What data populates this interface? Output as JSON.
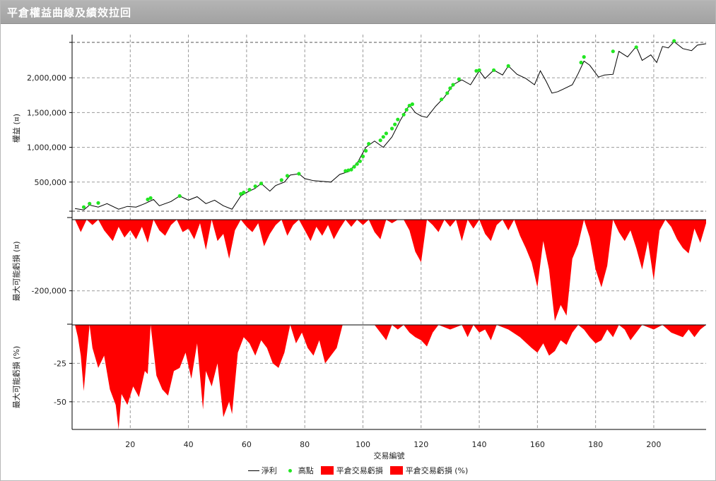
{
  "window": {
    "title": "平倉權益曲線及績效拉回"
  },
  "colors": {
    "equity_line": "#000000",
    "highs": "#22e622",
    "drawdown": "#ff0000",
    "grid": "#9a9a9a",
    "axis": "#000000"
  },
  "chart_data": [
    {
      "type": "line",
      "panel": "equity",
      "ylabel": "權益 (¤)",
      "ylim": [
        0,
        2550000
      ],
      "ytick_values": [
        500000,
        1000000,
        1500000,
        2000000
      ],
      "ytick_labels": [
        "500,000",
        "1,000,000",
        "1,500,000",
        "2,000,000"
      ],
      "grid": true,
      "series": [
        {
          "name": "淨利",
          "x": [
            1,
            4,
            6,
            9,
            12,
            16,
            19,
            22,
            25,
            28,
            30,
            34,
            37,
            40,
            43,
            46,
            49,
            52,
            55,
            58,
            60,
            63,
            65,
            68,
            70,
            73,
            75,
            78,
            80,
            83,
            86,
            89,
            92,
            95,
            98,
            101,
            104,
            107,
            110,
            113,
            116,
            118,
            120,
            122,
            125,
            128,
            131,
            134,
            137,
            140,
            142,
            145,
            148,
            150,
            153,
            156,
            159,
            161,
            163,
            165,
            167,
            169,
            172,
            174,
            176,
            178,
            181,
            183,
            186,
            188,
            191,
            194,
            196,
            199,
            201,
            203,
            205,
            207,
            210,
            213,
            215,
            218
          ],
          "y": [
            120000,
            100000,
            170000,
            140000,
            190000,
            110000,
            150000,
            140000,
            190000,
            250000,
            160000,
            220000,
            300000,
            240000,
            290000,
            190000,
            240000,
            160000,
            110000,
            300000,
            350000,
            410000,
            480000,
            370000,
            450000,
            500000,
            600000,
            620000,
            550000,
            520000,
            510000,
            500000,
            610000,
            650000,
            770000,
            1000000,
            1090000,
            1000000,
            1150000,
            1400000,
            1610000,
            1500000,
            1450000,
            1430000,
            1590000,
            1720000,
            1900000,
            1970000,
            1900000,
            2100000,
            1990000,
            2110000,
            2040000,
            2170000,
            2050000,
            1990000,
            1900000,
            2100000,
            1950000,
            1780000,
            1800000,
            1840000,
            1900000,
            2060000,
            2240000,
            2180000,
            2010000,
            2040000,
            2050000,
            2380000,
            2300000,
            2450000,
            2250000,
            2330000,
            2220000,
            2450000,
            2430000,
            2520000,
            2420000,
            2390000,
            2470000,
            2490000
          ]
        },
        {
          "name": "高點",
          "x": [
            4,
            6,
            9,
            26,
            27,
            37,
            58,
            59,
            61,
            63,
            65,
            72,
            74,
            78,
            94,
            95,
            96,
            97,
            98,
            99,
            100,
            101,
            102,
            106,
            107,
            108,
            110,
            111,
            112,
            114,
            115,
            116,
            117,
            127,
            129,
            130,
            131,
            133,
            139,
            140,
            145,
            150,
            175,
            176,
            186,
            194,
            207
          ],
          "y": [
            140000,
            190000,
            200000,
            250000,
            270000,
            300000,
            330000,
            350000,
            390000,
            440000,
            480000,
            530000,
            590000,
            620000,
            660000,
            670000,
            680000,
            720000,
            760000,
            800000,
            870000,
            950000,
            1050000,
            1100000,
            1150000,
            1200000,
            1270000,
            1330000,
            1400000,
            1470000,
            1540000,
            1600000,
            1620000,
            1690000,
            1780000,
            1850000,
            1900000,
            1980000,
            2100000,
            2110000,
            2110000,
            2170000,
            2220000,
            2300000,
            2380000,
            2440000,
            2530000
          ]
        }
      ]
    },
    {
      "type": "area",
      "panel": "drawdown_amount",
      "ylabel": "最大可能虧損 (¤)",
      "ylim": [
        -290000,
        0
      ],
      "ytick_values": [
        -200000
      ],
      "ytick_labels": [
        "-200,000"
      ],
      "grid": true,
      "series": [
        {
          "name": "平倉交易虧損",
          "x": [
            1,
            3,
            5,
            7,
            9,
            11,
            14,
            16,
            18,
            20,
            22,
            24,
            26,
            28,
            30,
            32,
            34,
            36,
            38,
            40,
            42,
            44,
            46,
            48,
            50,
            52,
            54,
            56,
            58,
            60,
            62,
            64,
            66,
            68,
            70,
            72,
            74,
            76,
            78,
            80,
            82,
            84,
            86,
            88,
            90,
            92,
            94,
            96,
            98,
            100,
            102,
            104,
            106,
            108,
            110,
            112,
            114,
            116,
            118,
            120,
            122,
            124,
            126,
            128,
            130,
            132,
            134,
            136,
            138,
            140,
            142,
            144,
            146,
            148,
            150,
            152,
            154,
            156,
            158,
            160,
            162,
            164,
            166,
            168,
            170,
            172,
            174,
            176,
            178,
            180,
            182,
            184,
            186,
            188,
            190,
            192,
            194,
            196,
            198,
            200,
            202,
            204,
            206,
            208,
            210,
            212,
            214,
            216,
            218
          ],
          "y": [
            0,
            -35000,
            0,
            -15000,
            0,
            -30000,
            -60000,
            -20000,
            -50000,
            -30000,
            -55000,
            -20000,
            -65000,
            0,
            -30000,
            -45000,
            -15000,
            0,
            -35000,
            -25000,
            -55000,
            -10000,
            -85000,
            0,
            -60000,
            -40000,
            -110000,
            -30000,
            0,
            -20000,
            -35000,
            -10000,
            -75000,
            -40000,
            -15000,
            0,
            -45000,
            -15000,
            0,
            -30000,
            -60000,
            -20000,
            -45000,
            -15000,
            -55000,
            -25000,
            0,
            -20000,
            0,
            -15000,
            0,
            -35000,
            -55000,
            0,
            -10000,
            0,
            0,
            -30000,
            -90000,
            -120000,
            0,
            -15000,
            -35000,
            0,
            -20000,
            0,
            -60000,
            0,
            -25000,
            0,
            -40000,
            -60000,
            -15000,
            0,
            -30000,
            0,
            -45000,
            -80000,
            -120000,
            -190000,
            -60000,
            -140000,
            -285000,
            -240000,
            -270000,
            -110000,
            -70000,
            0,
            -50000,
            -140000,
            -190000,
            -130000,
            0,
            -35000,
            -60000,
            -30000,
            -80000,
            -140000,
            -60000,
            -170000,
            -30000,
            0,
            -20000,
            -55000,
            -80000,
            -95000,
            -25000,
            -65000,
            -10000
          ]
        }
      ]
    },
    {
      "type": "area",
      "panel": "drawdown_percent",
      "ylabel": "最大可能虧損 (%)",
      "ylim": [
        -68,
        0
      ],
      "ytick_values": [
        -25,
        -50
      ],
      "ytick_labels": [
        "-25",
        "-50"
      ],
      "xlabel": "交易編號",
      "xlim": [
        0,
        218
      ],
      "xtick_values": [
        20,
        40,
        60,
        80,
        100,
        120,
        140,
        160,
        180,
        200
      ],
      "xtick_labels": [
        "20",
        "40",
        "60",
        "80",
        "100",
        "120",
        "140",
        "160",
        "180",
        "200"
      ],
      "grid": true,
      "series": [
        {
          "name": "平倉交易虧損 (%)",
          "x": [
            1,
            2,
            3,
            4,
            6,
            7,
            9,
            11,
            13,
            15,
            16,
            17,
            19,
            21,
            23,
            25,
            26,
            27,
            29,
            31,
            33,
            35,
            37,
            39,
            41,
            43,
            45,
            46,
            48,
            50,
            52,
            54,
            55,
            57,
            59,
            61,
            63,
            65,
            67,
            69,
            71,
            73,
            75,
            77,
            79,
            81,
            83,
            85,
            87,
            89,
            91,
            93,
            96,
            100,
            104,
            106,
            108,
            110,
            112,
            114,
            116,
            118,
            120,
            122,
            124,
            126,
            130,
            134,
            136,
            138,
            140,
            142,
            144,
            146,
            150,
            154,
            158,
            160,
            162,
            164,
            166,
            168,
            170,
            172,
            174,
            176,
            178,
            180,
            182,
            184,
            186,
            188,
            190,
            192,
            194,
            196,
            200,
            203,
            206,
            210,
            212,
            214,
            216,
            218
          ],
          "y": [
            0,
            -8,
            -20,
            -43,
            0,
            -15,
            -28,
            -20,
            -42,
            -52,
            -68,
            -45,
            -52,
            -40,
            -47,
            -30,
            -32,
            0,
            -33,
            -42,
            -46,
            -30,
            -28,
            -18,
            -35,
            -12,
            -55,
            -30,
            -40,
            -25,
            -60,
            -50,
            -58,
            -18,
            -8,
            -12,
            -20,
            -10,
            -15,
            -25,
            -28,
            -18,
            0,
            -12,
            -5,
            -15,
            -20,
            -10,
            -25,
            -20,
            -15,
            0,
            0,
            0,
            0,
            -5,
            -10,
            0,
            -3,
            0,
            -5,
            -8,
            -10,
            -14,
            -5,
            0,
            -3,
            0,
            -8,
            0,
            -5,
            -3,
            -10,
            0,
            -3,
            -8,
            -15,
            -18,
            -12,
            -20,
            -17,
            -10,
            -13,
            -5,
            0,
            -3,
            -8,
            -12,
            -10,
            -3,
            -8,
            0,
            -3,
            -10,
            -5,
            0,
            -3,
            0,
            -5,
            -8,
            -3,
            -8,
            -3,
            0
          ]
        }
      ]
    }
  ],
  "legend": {
    "items": [
      {
        "label": "淨利",
        "kind": "line"
      },
      {
        "label": "高點",
        "kind": "dot"
      },
      {
        "label": "平倉交易虧損",
        "kind": "box"
      },
      {
        "label": "平倉交易虧損 (%)",
        "kind": "box"
      }
    ]
  }
}
